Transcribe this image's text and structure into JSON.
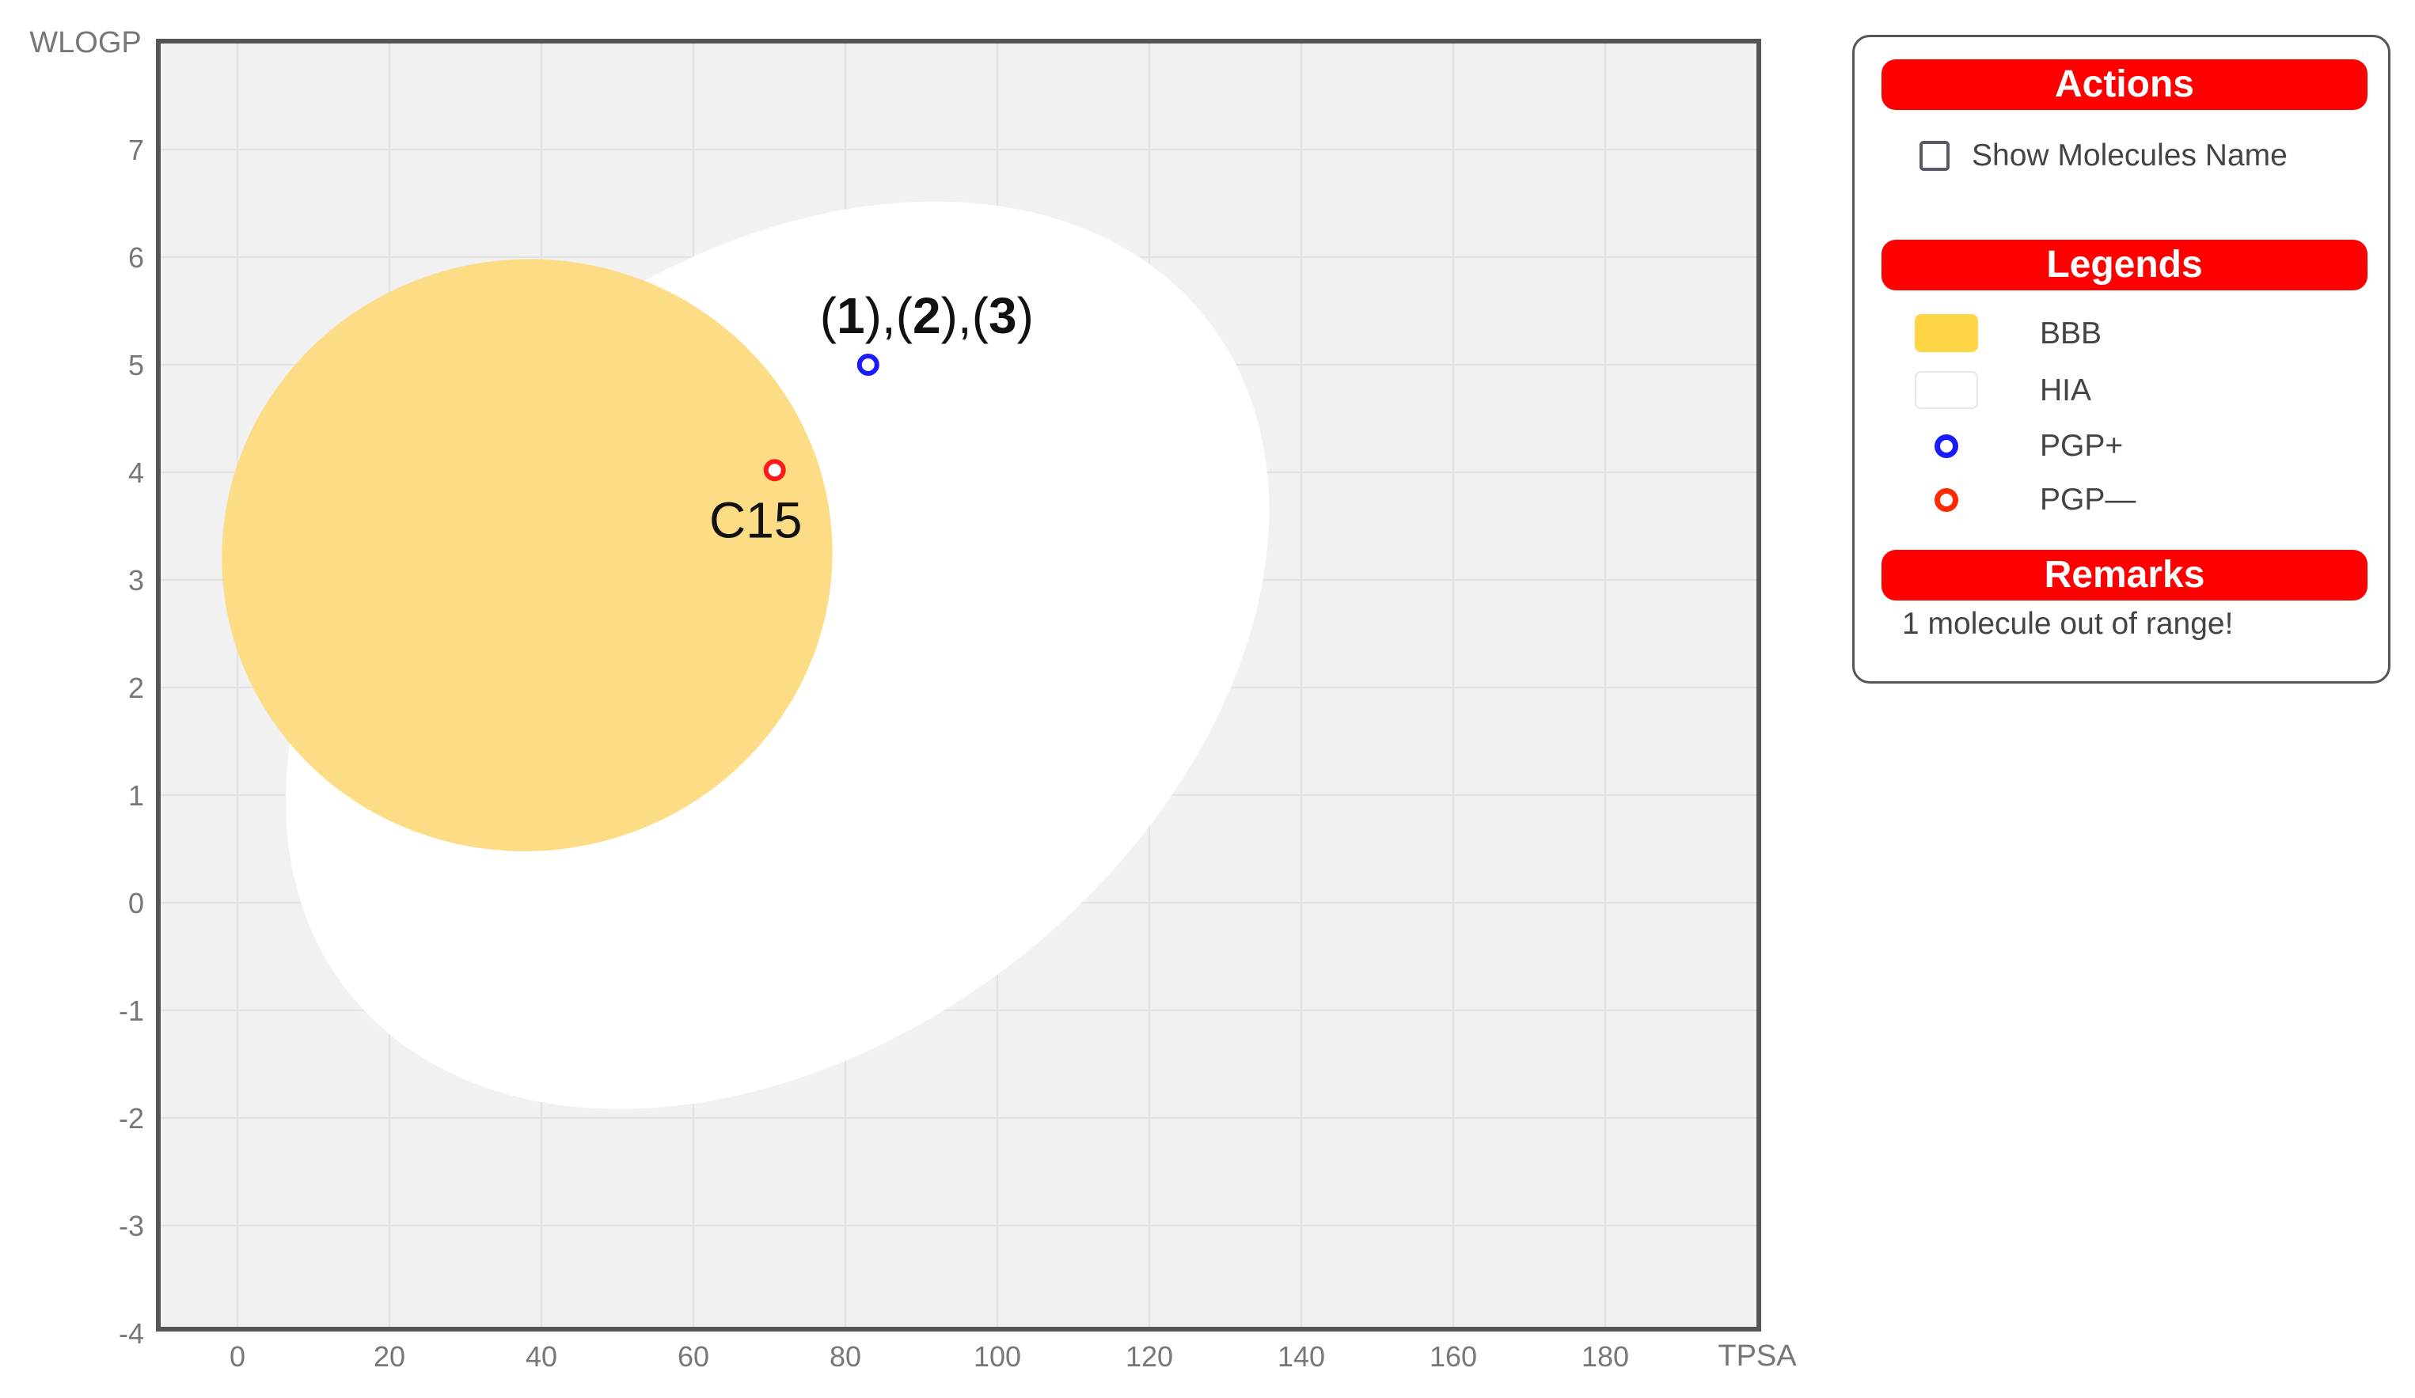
{
  "chart_data": {
    "type": "scatter",
    "xlabel": "TPSA",
    "ylabel": "WLOGP",
    "xlim": [
      -10,
      200
    ],
    "ylim": [
      -4,
      8
    ],
    "x_ticks": [
      0,
      20,
      40,
      60,
      80,
      100,
      120,
      140,
      160,
      180
    ],
    "y_ticks": [
      -4,
      -3,
      -2,
      -1,
      0,
      1,
      2,
      3,
      4,
      5,
      6,
      7
    ],
    "grid": true,
    "regions": [
      {
        "name": "HIA",
        "color": "#ffffff",
        "center": [
          71.05,
          2.3
        ],
        "radii": [
          71.8,
          3.6
        ],
        "rotation_deg": -38
      },
      {
        "name": "BBB",
        "color": "#fddb82",
        "center": [
          38.12,
          3.23
        ],
        "radii": [
          40.2,
          2.75
        ],
        "rotation_deg": -8
      }
    ],
    "points": [
      {
        "label": "(1),(2),(3)",
        "label_bold_parts": [
          "1",
          "2",
          "3"
        ],
        "x": 83,
        "y": 5.0,
        "class": "PGP+",
        "color": "#1a1aff"
      },
      {
        "label": "C15",
        "x": 70.7,
        "y": 4.02,
        "class": "PGP—",
        "color": "#ff1a1a"
      }
    ]
  },
  "panel": {
    "actions_header": "Actions",
    "show_names_label": "Show Molecules Name",
    "legends_header": "Legends",
    "legend_items": [
      {
        "label": "BBB",
        "kind": "swatch",
        "color": "#fdd545"
      },
      {
        "label": "HIA",
        "kind": "swatch",
        "color": "#ffffff"
      },
      {
        "label": "PGP+",
        "kind": "dot",
        "color": "#1a1aff"
      },
      {
        "label": "PGP—",
        "kind": "dot",
        "color": "#ff2a00"
      }
    ],
    "remarks_header": "Remarks",
    "remark_text": "1 molecule out of range!"
  },
  "colors": {
    "header_red": "#ff0000",
    "plot_background": "#f1f1f1",
    "grid": "#e2e2e2"
  }
}
